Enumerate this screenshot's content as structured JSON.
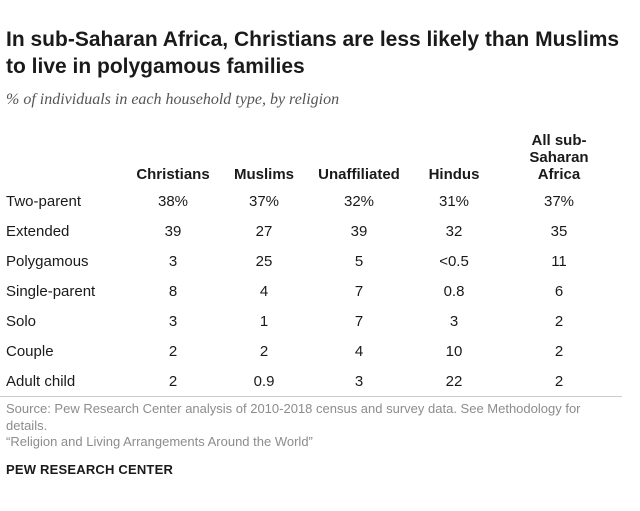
{
  "chart_data": {
    "type": "table",
    "title": "In sub-Saharan Africa, Christians are less likely than Muslims to live in polygamous families",
    "subtitle": "% of individuals in each household type, by religion",
    "columns": [
      "Christians",
      "Muslims",
      "Unaffiliated",
      "Hindus",
      "All sub-\nSaharan\nAfrica"
    ],
    "rows": [
      {
        "label": "Two-parent",
        "values": [
          "38%",
          "37%",
          "32%",
          "31%",
          "37%"
        ]
      },
      {
        "label": "Extended",
        "values": [
          "39",
          "27",
          "39",
          "32",
          "35"
        ]
      },
      {
        "label": "Polygamous",
        "values": [
          "3",
          "25",
          "5",
          "<0.5",
          "11"
        ]
      },
      {
        "label": "Single-parent",
        "values": [
          "8",
          "4",
          "7",
          "0.8",
          "6"
        ]
      },
      {
        "label": "Solo",
        "values": [
          "3",
          "1",
          "7",
          "3",
          "2"
        ]
      },
      {
        "label": "Couple",
        "values": [
          "2",
          "2",
          "4",
          "10",
          "2"
        ]
      },
      {
        "label": "Adult child",
        "values": [
          "2",
          "0.9",
          "3",
          "22",
          "2"
        ]
      }
    ]
  },
  "source": {
    "line1": "Source: Pew Research Center analysis of 2010-2018 census and survey data. See Methodology for details.",
    "line2": "“Religion and Living Arrangements Around the World”"
  },
  "footer": "PEW RESEARCH CENTER"
}
